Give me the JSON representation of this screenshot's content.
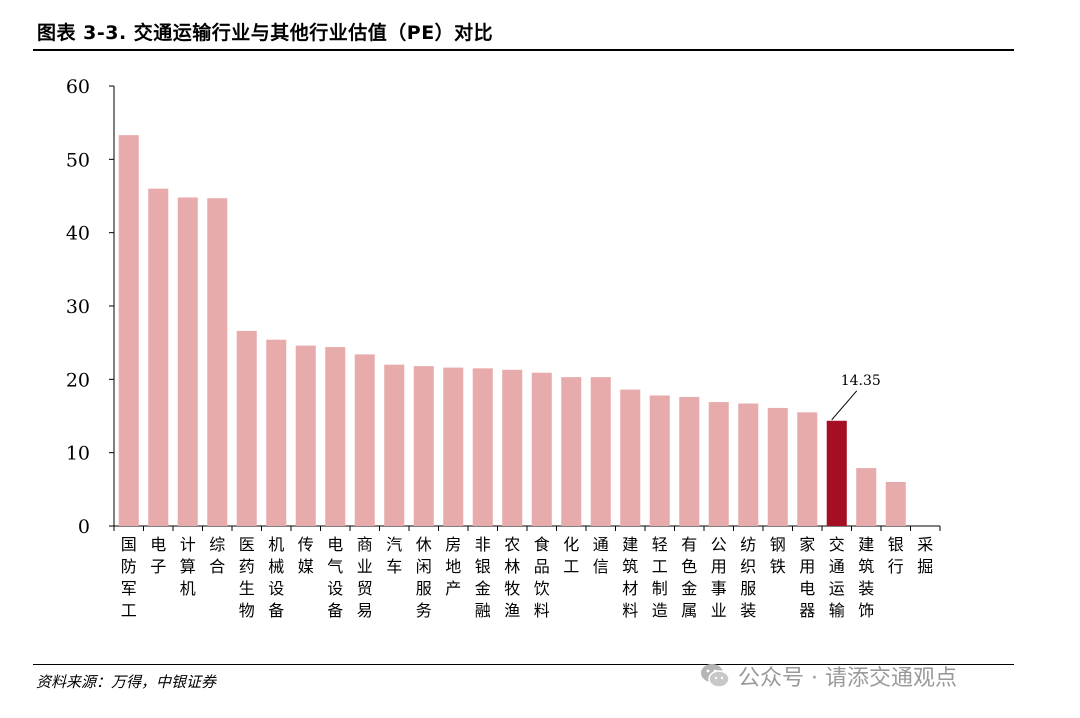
{
  "title": "图表 3-3. 交通运输行业与其他行业估值（PE）对比",
  "source": "资料来源：万得，中银证券",
  "watermark": {
    "text": "公众号 · 请添交通观点",
    "icon": "wechat-icon"
  },
  "colors": {
    "bar": "#e8abab",
    "highlight": "#a50f24",
    "axis": "#000000"
  },
  "chart_data": {
    "type": "bar",
    "title": "图表 3-3. 交通运输行业与其他行业估值（PE）对比",
    "xlabel": "",
    "ylabel": "",
    "ylim": [
      0,
      60
    ],
    "yticks": [
      0,
      10,
      20,
      30,
      40,
      50,
      60
    ],
    "grid": false,
    "categories": [
      "国防军工",
      "电子",
      "计算机",
      "综合",
      "医药生物",
      "机械设备",
      "传媒",
      "电气设备",
      "商业贸易",
      "汽车",
      "休闲服务",
      "房地产",
      "非银金融",
      "农林牧渔",
      "食品饮料",
      "化工",
      "通信",
      "建筑材料",
      "轻工制造",
      "有色金属",
      "公用事业",
      "纺织服装",
      "钢铁",
      "家用电器",
      "交通运输",
      "建筑装饰",
      "银行",
      "采掘"
    ],
    "values": [
      53.3,
      46.0,
      44.8,
      44.7,
      26.6,
      25.4,
      24.6,
      24.4,
      23.4,
      22.0,
      21.8,
      21.6,
      21.5,
      21.3,
      20.9,
      20.3,
      20.3,
      18.6,
      17.8,
      17.6,
      16.9,
      16.7,
      16.1,
      15.5,
      14.35,
      7.9,
      6.0,
      0
    ],
    "highlight_category": "交通运输",
    "annotation": {
      "category": "交通运输",
      "label": "14.35"
    }
  }
}
